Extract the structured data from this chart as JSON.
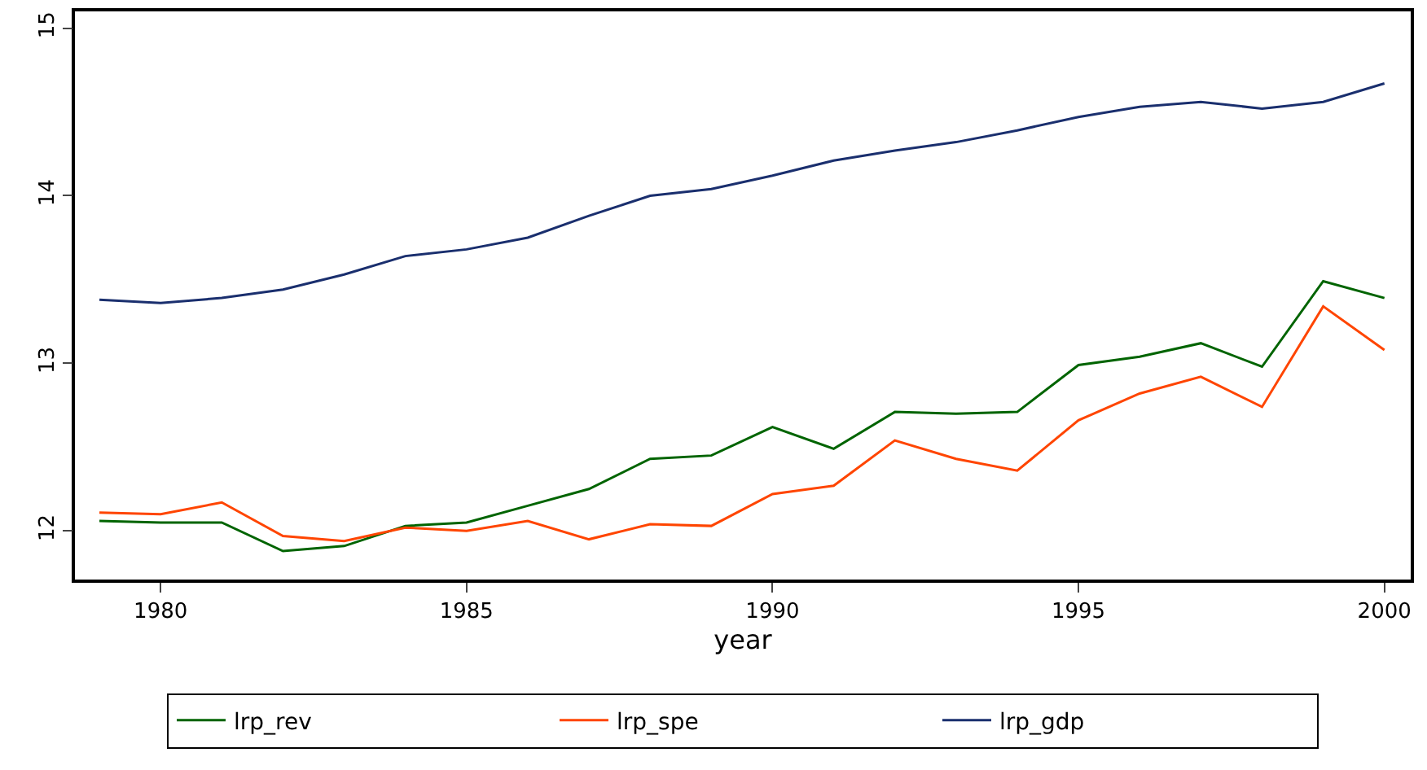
{
  "chart_data": {
    "type": "line",
    "xlabel": "year",
    "x": [
      1979,
      1980,
      1981,
      1982,
      1983,
      1984,
      1985,
      1986,
      1987,
      1988,
      1989,
      1990,
      1991,
      1992,
      1993,
      1994,
      1995,
      1996,
      1997,
      1998,
      1999,
      2000
    ],
    "series": [
      {
        "name": "lrp_rev",
        "color": "#006400",
        "values": [
          12.06,
          12.05,
          12.05,
          11.88,
          11.91,
          12.03,
          12.05,
          12.15,
          12.25,
          12.43,
          12.45,
          12.62,
          12.49,
          12.71,
          12.7,
          12.71,
          12.99,
          13.04,
          13.12,
          12.98,
          13.49,
          13.39
        ]
      },
      {
        "name": "lrp_spe",
        "color": "#ff4500",
        "values": [
          12.11,
          12.1,
          12.17,
          11.97,
          11.94,
          12.02,
          12.0,
          12.06,
          11.95,
          12.04,
          12.03,
          12.22,
          12.27,
          12.54,
          12.43,
          12.36,
          12.66,
          12.82,
          12.92,
          12.74,
          13.34,
          13.08
        ]
      },
      {
        "name": "lrp_gdp",
        "color": "#1a2f6e",
        "values": [
          13.38,
          13.36,
          13.39,
          13.44,
          13.53,
          13.64,
          13.68,
          13.75,
          13.88,
          14.0,
          14.04,
          14.12,
          14.21,
          14.27,
          14.32,
          14.39,
          14.47,
          14.53,
          14.56,
          14.52,
          14.56,
          14.67
        ]
      }
    ],
    "xlim": [
      1978.6,
      2000.43
    ],
    "xticks": [
      1980,
      1985,
      1990,
      1995,
      2000
    ],
    "ylim": [
      11.71,
      15.1
    ],
    "yticks": [
      12,
      13,
      14,
      15
    ],
    "grid": false,
    "legend": "bottom",
    "marker": "none",
    "line_style": "solid"
  }
}
